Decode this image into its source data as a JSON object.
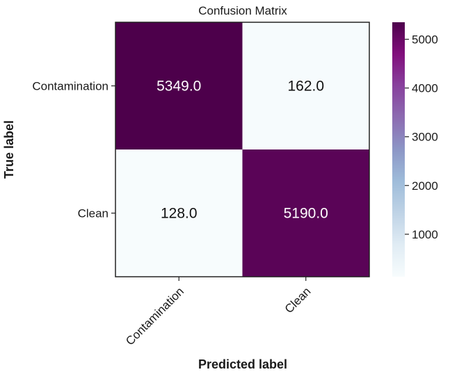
{
  "chart_data": {
    "type": "heatmap",
    "title": "Confusion Matrix",
    "xlabel": "Predicted label",
    "ylabel": "True label",
    "x_categories": [
      "Contamination",
      "Clean"
    ],
    "y_categories": [
      "Contamination",
      "Clean"
    ],
    "values": [
      [
        5349.0,
        162.0
      ],
      [
        128.0,
        5190.0
      ]
    ],
    "value_labels": [
      [
        "5349.0",
        "162.0"
      ],
      [
        "128.0",
        "5190.0"
      ]
    ],
    "colorbar": {
      "range": [
        128.0,
        5349.0
      ],
      "ticks": [
        1000,
        2000,
        3000,
        4000,
        5000
      ],
      "tick_labels": [
        "1000",
        "2000",
        "3000",
        "4000",
        "5000"
      ],
      "colormap": "BuPu",
      "colors": [
        "#f7fcfd",
        "#e0ecf4",
        "#bfd3e6",
        "#9ebcda",
        "#8c96c6",
        "#8c6bb1",
        "#88419d",
        "#810f7c",
        "#4d004b"
      ]
    }
  }
}
